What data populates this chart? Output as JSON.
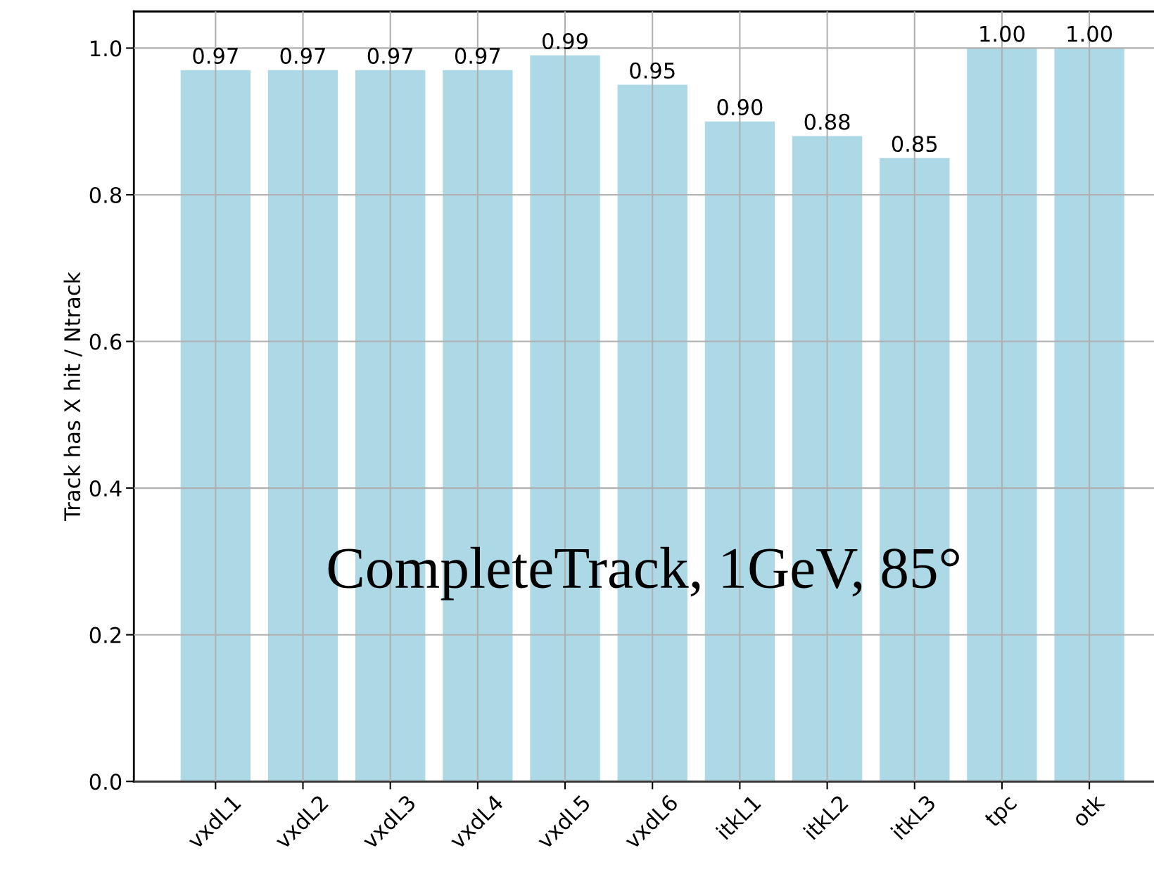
{
  "chart_data": {
    "type": "bar",
    "categories": [
      "vxdL1",
      "vxdL2",
      "vxdL3",
      "vxdL4",
      "vxdL5",
      "vxdL6",
      "itkL1",
      "itkL2",
      "itkL3",
      "tpc",
      "otk"
    ],
    "values": [
      0.97,
      0.97,
      0.97,
      0.97,
      0.99,
      0.95,
      0.9,
      0.88,
      0.85,
      1.0,
      1.0
    ],
    "color": "#add8e6",
    "value_labels": [
      "0.97",
      "0.97",
      "0.97",
      "0.97",
      "0.99",
      "0.95",
      "0.90",
      "0.88",
      "0.85",
      "1.00",
      "1.00"
    ],
    "ylabel": "Track has X hit / Ntrack",
    "ylim": [
      0,
      1.05
    ],
    "yticks": [
      {
        "value": 0,
        "label": "0.0"
      },
      {
        "value": 0.2,
        "label": "0.2"
      },
      {
        "value": 0.4,
        "label": "0.4"
      },
      {
        "value": 0.6,
        "label": "0.6"
      },
      {
        "value": 0.8,
        "label": "0.8"
      },
      {
        "value": 1.0,
        "label": "1.0"
      }
    ],
    "grid": true,
    "annotations": [
      "CompleteTrack, 1GeV, 85°"
    ]
  }
}
